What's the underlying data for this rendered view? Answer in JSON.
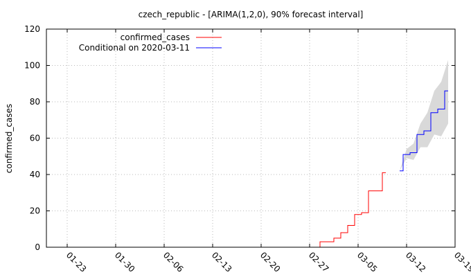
{
  "chart_data": {
    "type": "line",
    "title": "czech_republic -  [ARIMA(1,2,0), 90% forecast interval]",
    "xlabel": "",
    "ylabel": "confirmed_cases",
    "x_is_date": true,
    "xlim": [
      "2020-01-20",
      "2020-03-19"
    ],
    "ylim": [
      0,
      120
    ],
    "grid": true,
    "legend_position": "top-left",
    "x_ticks": [
      "2020-01-23",
      "2020-01-30",
      "2020-02-06",
      "2020-02-13",
      "2020-02-20",
      "2020-02-27",
      "2020-03-05",
      "2020-03-12",
      "2020-03-19"
    ],
    "x_tick_labels": [
      "01-23",
      "01-30",
      "02-06",
      "02-13",
      "02-20",
      "02-27",
      "03-05",
      "03-12",
      "03-19"
    ],
    "y_ticks": [
      0,
      20,
      40,
      60,
      80,
      100,
      120
    ],
    "y_tick_labels": [
      "0",
      "20",
      "40",
      "60",
      "80",
      "100",
      "120"
    ],
    "series": [
      {
        "name": "confirmed_cases",
        "color": "#ff0000",
        "points": [
          [
            "2020-02-28",
            0
          ],
          [
            "2020-02-29",
            3
          ],
          [
            "2020-03-01",
            3
          ],
          [
            "2020-03-02",
            5
          ],
          [
            "2020-03-03",
            8
          ],
          [
            "2020-03-04",
            12
          ],
          [
            "2020-03-05",
            18
          ],
          [
            "2020-03-06",
            19
          ],
          [
            "2020-03-07",
            31
          ],
          [
            "2020-03-08",
            31
          ],
          [
            "2020-03-09",
            41
          ]
        ]
      },
      {
        "name": "Conditional on 2020-03-11",
        "color": "#0000ff",
        "points": [
          [
            "2020-03-11",
            42
          ],
          [
            "2020-03-12",
            51
          ],
          [
            "2020-03-13",
            52
          ],
          [
            "2020-03-14",
            62
          ],
          [
            "2020-03-15",
            64
          ],
          [
            "2020-03-16",
            74
          ],
          [
            "2020-03-17",
            76
          ],
          [
            "2020-03-18",
            86
          ]
        ]
      }
    ],
    "forecast_interval": {
      "color": "#d9d9d9",
      "lower": [
        [
          "2020-03-11",
          42
        ],
        [
          "2020-03-12",
          49
        ],
        [
          "2020-03-13",
          48
        ],
        [
          "2020-03-14",
          55
        ],
        [
          "2020-03-15",
          55
        ],
        [
          "2020-03-16",
          62
        ],
        [
          "2020-03-17",
          61
        ],
        [
          "2020-03-18",
          68
        ]
      ],
      "upper": [
        [
          "2020-03-11",
          42
        ],
        [
          "2020-03-12",
          54
        ],
        [
          "2020-03-13",
          57
        ],
        [
          "2020-03-14",
          68
        ],
        [
          "2020-03-15",
          74
        ],
        [
          "2020-03-16",
          86
        ],
        [
          "2020-03-17",
          91
        ],
        [
          "2020-03-18",
          103
        ]
      ]
    }
  }
}
